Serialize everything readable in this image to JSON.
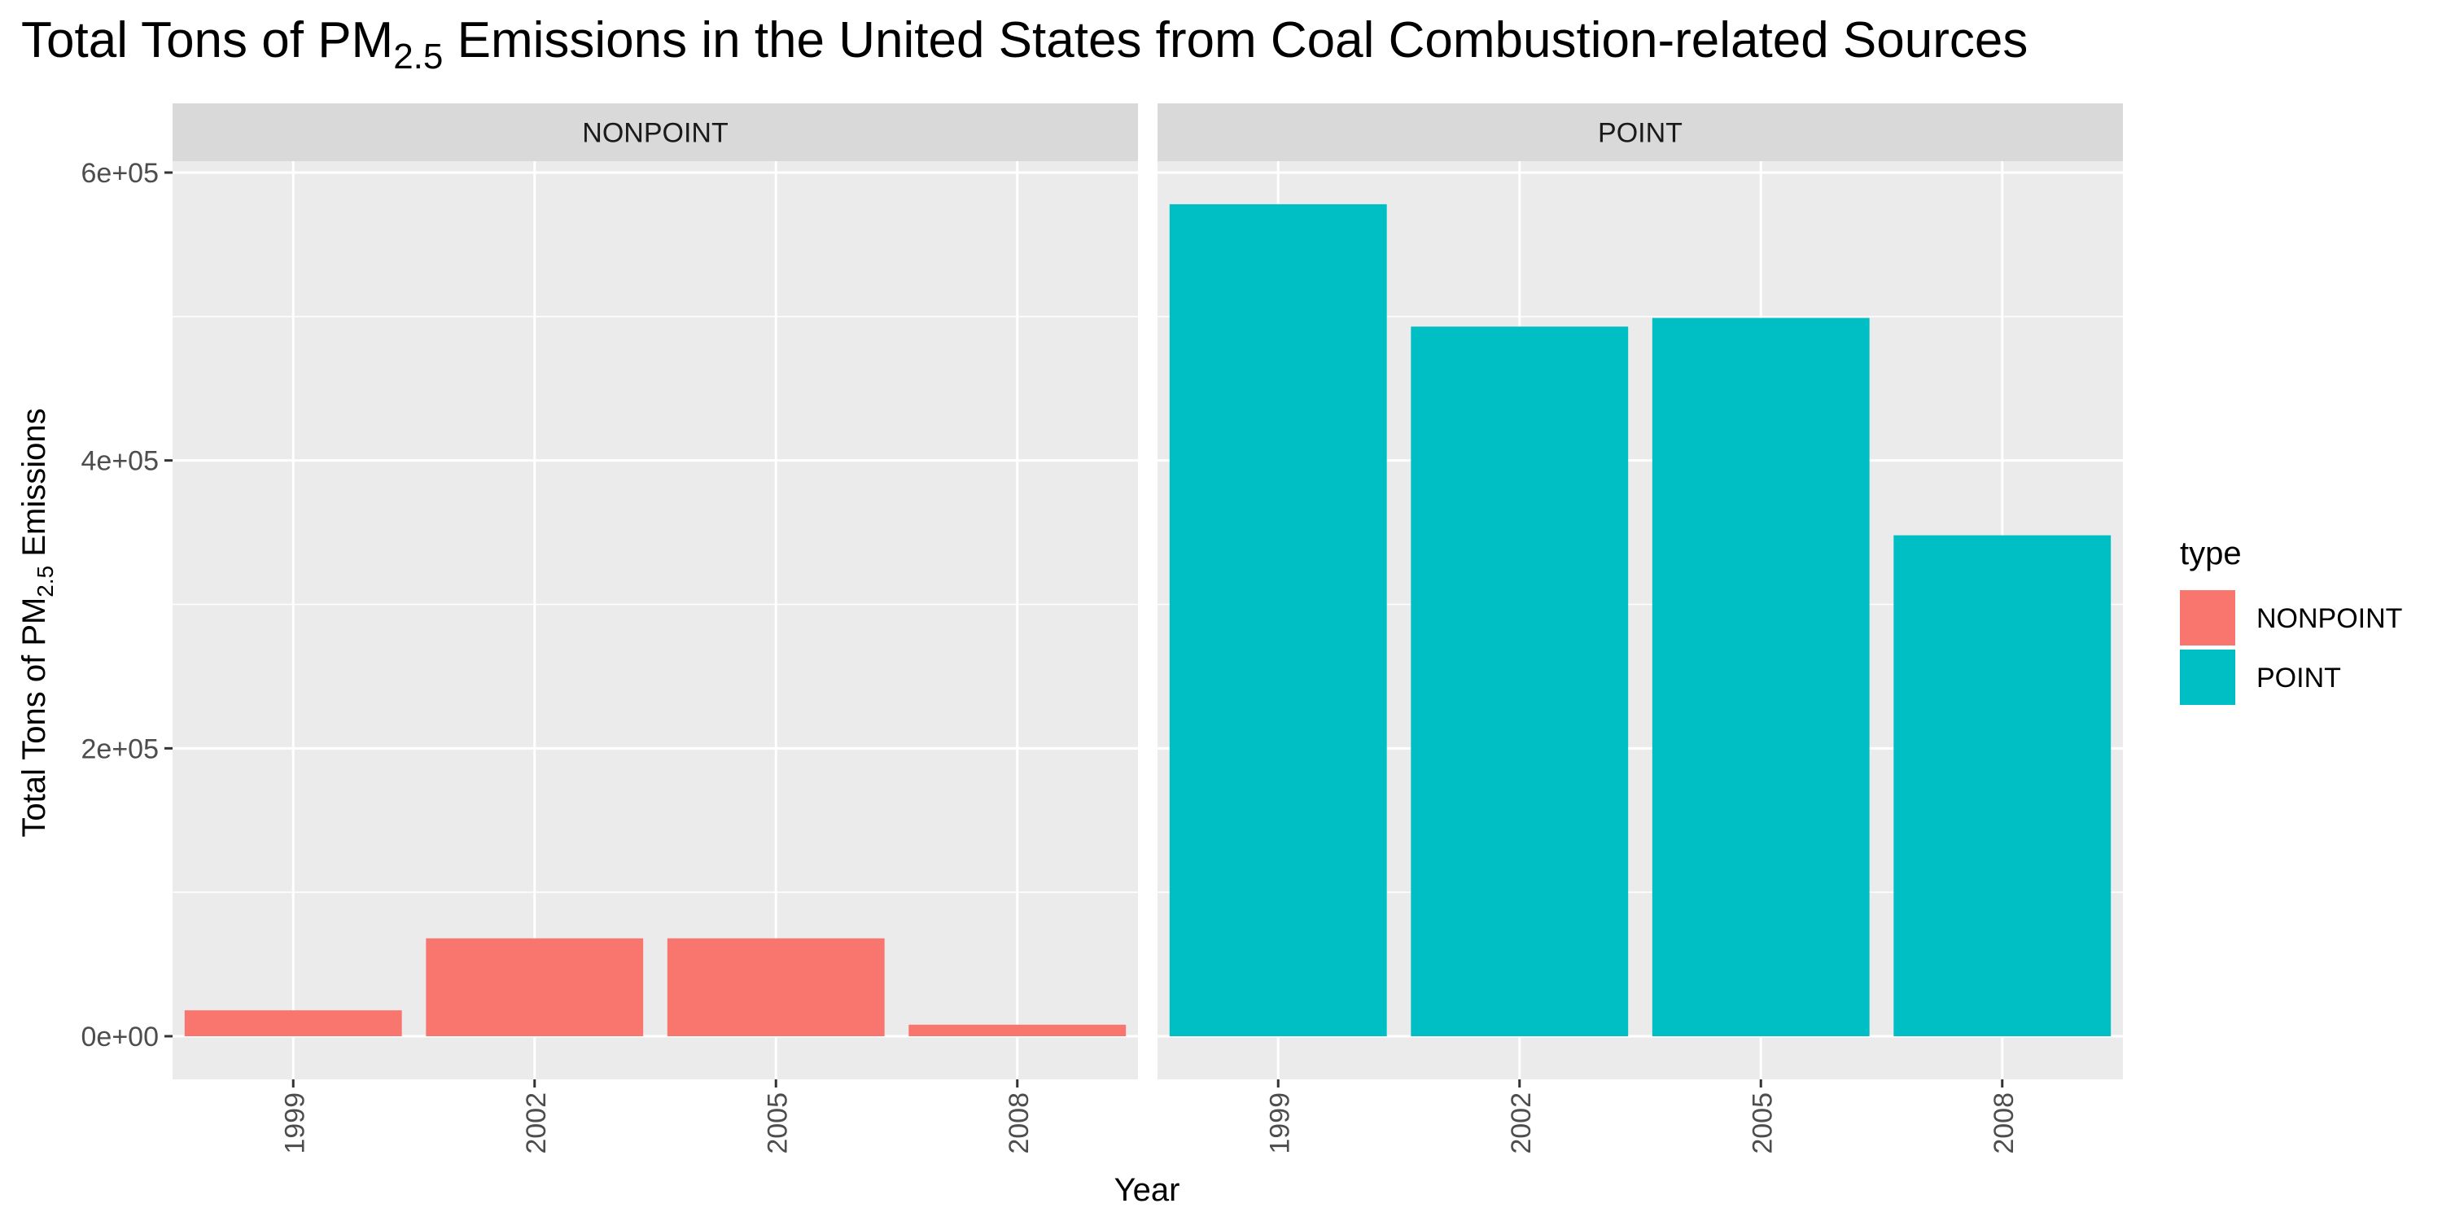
{
  "chart_data": {
    "type": "bar",
    "title": {
      "prefix": "Total Tons of PM",
      "subscript": "2.5",
      "suffix": " Emissions in the United States from Coal Combustion-related Sources"
    },
    "xlabel": "Year",
    "ylabel": {
      "prefix": "Total Tons of PM",
      "subscript": "2.5",
      "suffix": " Emissions"
    },
    "categories": [
      "1999",
      "2002",
      "2005",
      "2008"
    ],
    "facets": [
      "NONPOINT",
      "POINT"
    ],
    "series": [
      {
        "name": "NONPOINT",
        "facet": "NONPOINT",
        "color": "#F8766D",
        "values": [
          18000,
          68000,
          68000,
          8000
        ]
      },
      {
        "name": "POINT",
        "facet": "POINT",
        "color": "#00BFC4",
        "values": [
          578000,
          493000,
          499000,
          348000
        ]
      }
    ],
    "ylim": [
      0,
      600000
    ],
    "yticks": [
      0,
      200000,
      400000,
      600000
    ],
    "ytick_labels": [
      "0e+00",
      "2e+05",
      "4e+05",
      "6e+05"
    ],
    "grid": true,
    "legend": {
      "title": "type",
      "placement": "right",
      "entries": [
        "NONPOINT",
        "POINT"
      ]
    }
  }
}
